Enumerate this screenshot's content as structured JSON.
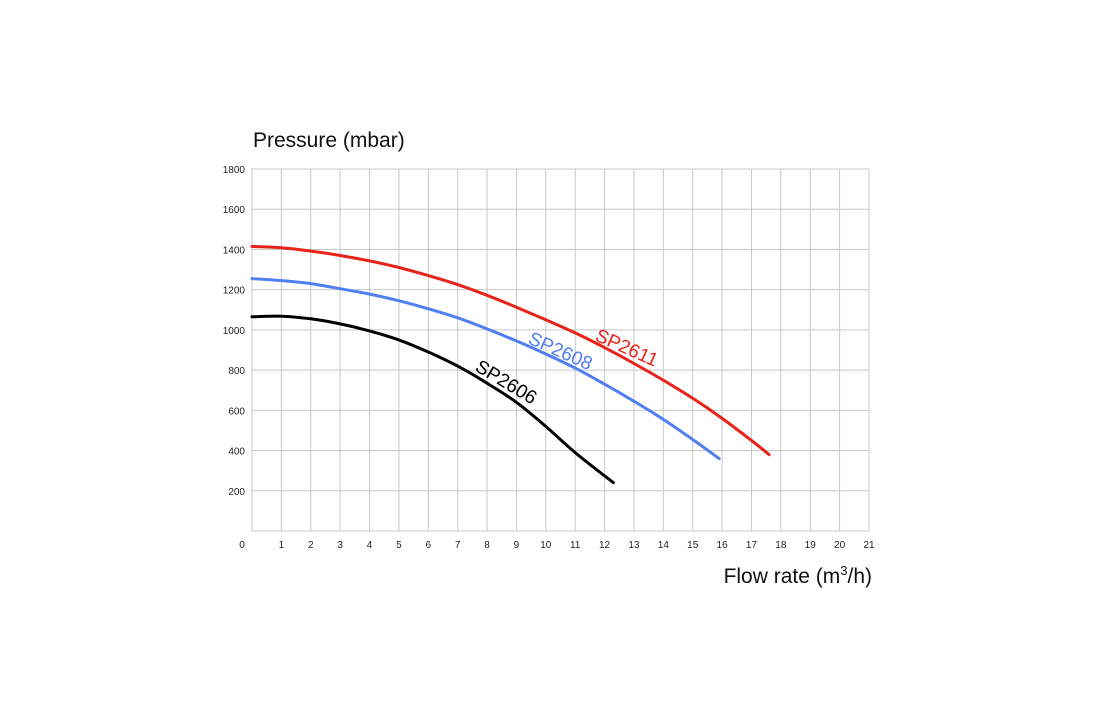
{
  "chart_data": {
    "type": "line",
    "ylabel": "Pressure (mbar)",
    "xlabel_prefix": "Flow rate (m",
    "xlabel_sup": "3",
    "xlabel_suffix": "/h)",
    "xlim": [
      0,
      21
    ],
    "ylim": [
      0,
      1800
    ],
    "xticks": [
      0,
      1,
      2,
      3,
      4,
      5,
      6,
      7,
      8,
      9,
      10,
      11,
      12,
      13,
      14,
      15,
      16,
      17,
      18,
      19,
      20,
      21
    ],
    "yticks": [
      200,
      400,
      600,
      800,
      1000,
      1200,
      1400,
      1600,
      1800
    ],
    "grid": true,
    "series": [
      {
        "name": "SP2606",
        "color": "#000000",
        "x": [
          0,
          1,
          2,
          3,
          4,
          5,
          6,
          7,
          8,
          9,
          10,
          11,
          12.3
        ],
        "y": [
          1065,
          1068,
          1055,
          1030,
          995,
          950,
          890,
          820,
          735,
          640,
          520,
          390,
          240
        ]
      },
      {
        "name": "SP2608",
        "color": "#4f7ff0",
        "x": [
          0,
          1,
          2,
          3,
          4,
          5,
          6,
          7,
          8,
          9,
          10,
          11,
          12,
          13,
          14,
          15,
          15.9
        ],
        "y": [
          1255,
          1245,
          1230,
          1205,
          1178,
          1145,
          1105,
          1060,
          1005,
          945,
          880,
          810,
          730,
          645,
          555,
          455,
          360
        ]
      },
      {
        "name": "SP2611",
        "color": "#e8231a",
        "x": [
          0,
          1,
          2,
          3,
          4,
          5,
          6,
          7,
          8,
          9,
          10,
          11,
          12,
          13,
          14,
          15,
          16,
          17,
          17.6
        ],
        "y": [
          1415,
          1408,
          1392,
          1370,
          1343,
          1310,
          1270,
          1225,
          1172,
          1113,
          1050,
          985,
          912,
          833,
          750,
          660,
          560,
          450,
          380
        ]
      }
    ]
  }
}
